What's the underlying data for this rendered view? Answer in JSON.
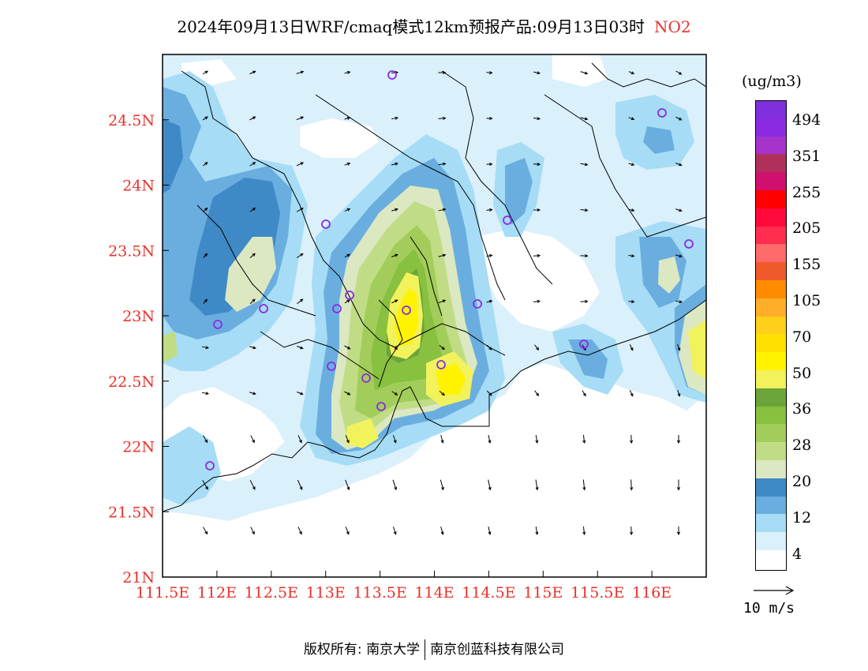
{
  "header": {
    "title": "2024年09月13日WRF/cmaq模式12km预报产品:09月13日03时",
    "pollutant": "NO2"
  },
  "map": {
    "lat_labels": [
      "24.5N",
      "24N",
      "23.5N",
      "23N",
      "22.5N",
      "22N",
      "21.5N",
      "21N"
    ],
    "lon_labels": [
      "111.5E",
      "112E",
      "112.5E",
      "113E",
      "113.5E",
      "114E",
      "114.5E",
      "115E",
      "115.5E",
      "116E"
    ],
    "lat_range": [
      21.0,
      25.0
    ],
    "lon_range": [
      111.5,
      116.5
    ],
    "label_color": "#e8322a",
    "station_marker_color": "#8a2be2"
  },
  "colorbar": {
    "unit": "(ug/m3)",
    "levels": [
      {
        "color": "#ffffff"
      },
      {
        "color": "#daf0fb"
      },
      {
        "color": "#a6dcf5"
      },
      {
        "color": "#6aaee0"
      },
      {
        "color": "#3f8ac6"
      },
      {
        "color": "#dbe8c2"
      },
      {
        "color": "#c0dd86"
      },
      {
        "color": "#a3cd5a"
      },
      {
        "color": "#88c040"
      },
      {
        "color": "#6ba53a"
      },
      {
        "color": "#f2f25c"
      },
      {
        "color": "#fff300"
      },
      {
        "color": "#ffe000"
      },
      {
        "color": "#ffcf1a"
      },
      {
        "color": "#ffae2a"
      },
      {
        "color": "#ff8c00"
      },
      {
        "color": "#ef5a2a"
      },
      {
        "color": "#ff6a6a"
      },
      {
        "color": "#ff2e4e"
      },
      {
        "color": "#ff0a3a"
      },
      {
        "color": "#ff0000"
      },
      {
        "color": "#d0106e"
      },
      {
        "color": "#b0305c"
      },
      {
        "color": "#a633cc"
      },
      {
        "color": "#8a2be2"
      },
      {
        "color": "#7f2fdc"
      }
    ],
    "labels": [
      "494",
      "351",
      "255",
      "205",
      "155",
      "105",
      "70",
      "50",
      "36",
      "28",
      "20",
      "12",
      "4"
    ]
  },
  "wind_reference": {
    "label": "10 m/s"
  },
  "footer": {
    "copyright_label": "版权所有:",
    "org1": "南京大学",
    "org2": "南京创蓝科技有限公司"
  }
}
